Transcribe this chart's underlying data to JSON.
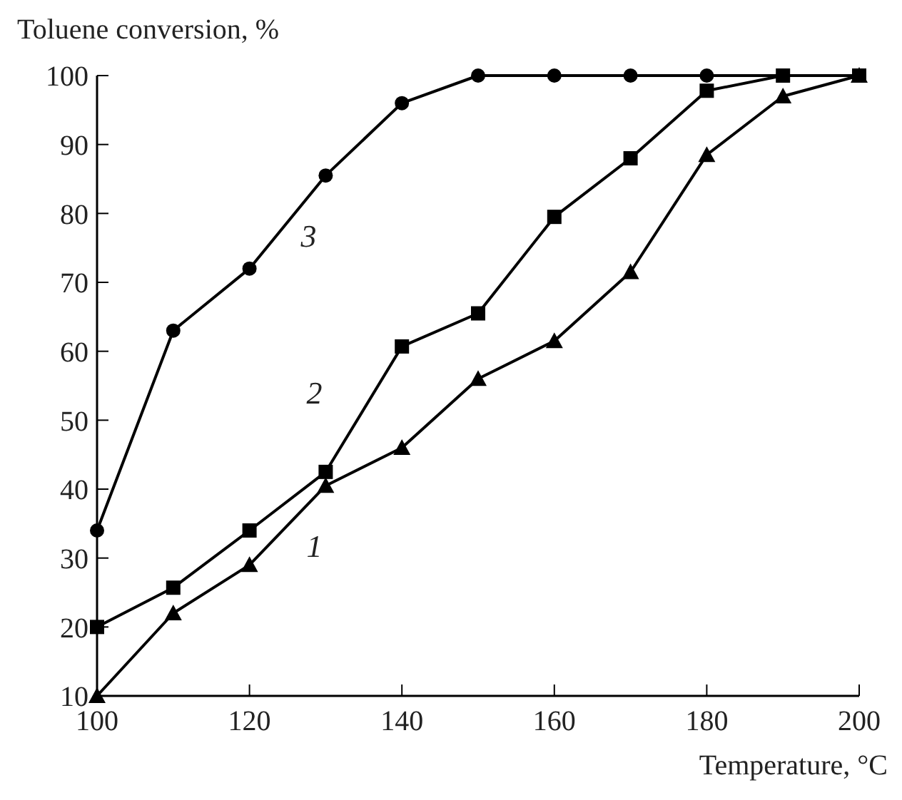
{
  "chart_data": {
    "type": "line",
    "xlabel": "Temperature, °C",
    "ylabel": "Toluene conversion, %",
    "x": [
      100,
      110,
      120,
      130,
      140,
      150,
      160,
      170,
      180,
      190,
      200
    ],
    "series": [
      {
        "name": "1",
        "color": "#000000",
        "marker": "triangle",
        "values": [
          10,
          22,
          29,
          40.5,
          46,
          56,
          61.5,
          71.5,
          88.5,
          97,
          100
        ]
      },
      {
        "name": "2",
        "color": "#000000",
        "marker": "square",
        "values": [
          20,
          25.7,
          34,
          42.5,
          60.7,
          65.5,
          79.5,
          88,
          97.8,
          100,
          100
        ]
      },
      {
        "name": "3",
        "color": "#000000",
        "marker": "circle",
        "values": [
          34,
          63,
          72,
          85.5,
          96,
          100,
          100,
          100,
          100,
          100,
          100
        ]
      }
    ],
    "xlim": [
      100,
      200
    ],
    "xticks": [
      100,
      120,
      140,
      160,
      180,
      200
    ],
    "ylim": [
      10,
      100
    ],
    "yticks": [
      10,
      20,
      30,
      40,
      50,
      60,
      70,
      80,
      90,
      100
    ],
    "grid": false,
    "legend": false,
    "line_style": "solid"
  }
}
